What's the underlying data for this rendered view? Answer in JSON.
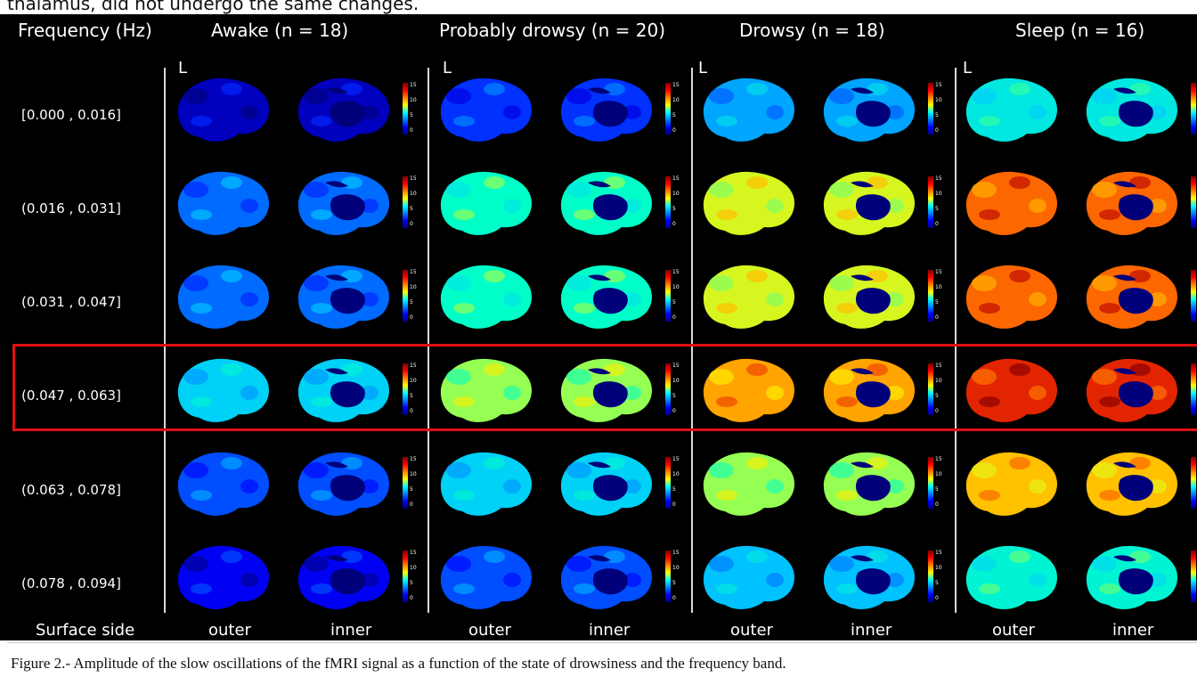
{
  "page": {
    "top_text": "thalamus, did not undergo the same changes.",
    "caption": "Figure 2.- Amplitude of the slow oscillations of the fMRI signal as a function of the state of drowsiness and the frequency band."
  },
  "figure": {
    "header_first": "Frequency (Hz)",
    "states": [
      {
        "label": "Awake (n = 18)"
      },
      {
        "label": "Probably drowsy (n = 20)"
      },
      {
        "label": "Drowsy (n = 18)"
      },
      {
        "label": "Sleep (n = 16)"
      }
    ],
    "hemisphere_mark": "L",
    "bands": [
      {
        "label": "[0.000 , 0.016]",
        "values": [
          0.8,
          2.5,
          4.5,
          6.5
        ]
      },
      {
        "label": "(0.016 , 0.031]",
        "values": [
          3.5,
          7.5,
          10.0,
          13.0
        ]
      },
      {
        "label": "(0.031 , 0.047]",
        "values": [
          3.5,
          7.5,
          10.0,
          13.0
        ]
      },
      {
        "label": "(0.047 , 0.063]",
        "values": [
          5.5,
          9.0,
          12.0,
          14.0
        ]
      },
      {
        "label": "(0.063 , 0.078]",
        "values": [
          3.0,
          5.5,
          9.0,
          11.5
        ]
      },
      {
        "label": "(0.078 , 0.094]",
        "values": [
          1.5,
          3.0,
          5.0,
          7.0
        ]
      }
    ],
    "highlighted_band": 3,
    "surface_side_label": "Surface side",
    "surface_words": [
      "outer",
      "inner"
    ],
    "colorbar_ticks": [
      "15",
      "10",
      "5",
      "0"
    ],
    "colorscale": "jet",
    "highlight_color": "#e01010"
  }
}
